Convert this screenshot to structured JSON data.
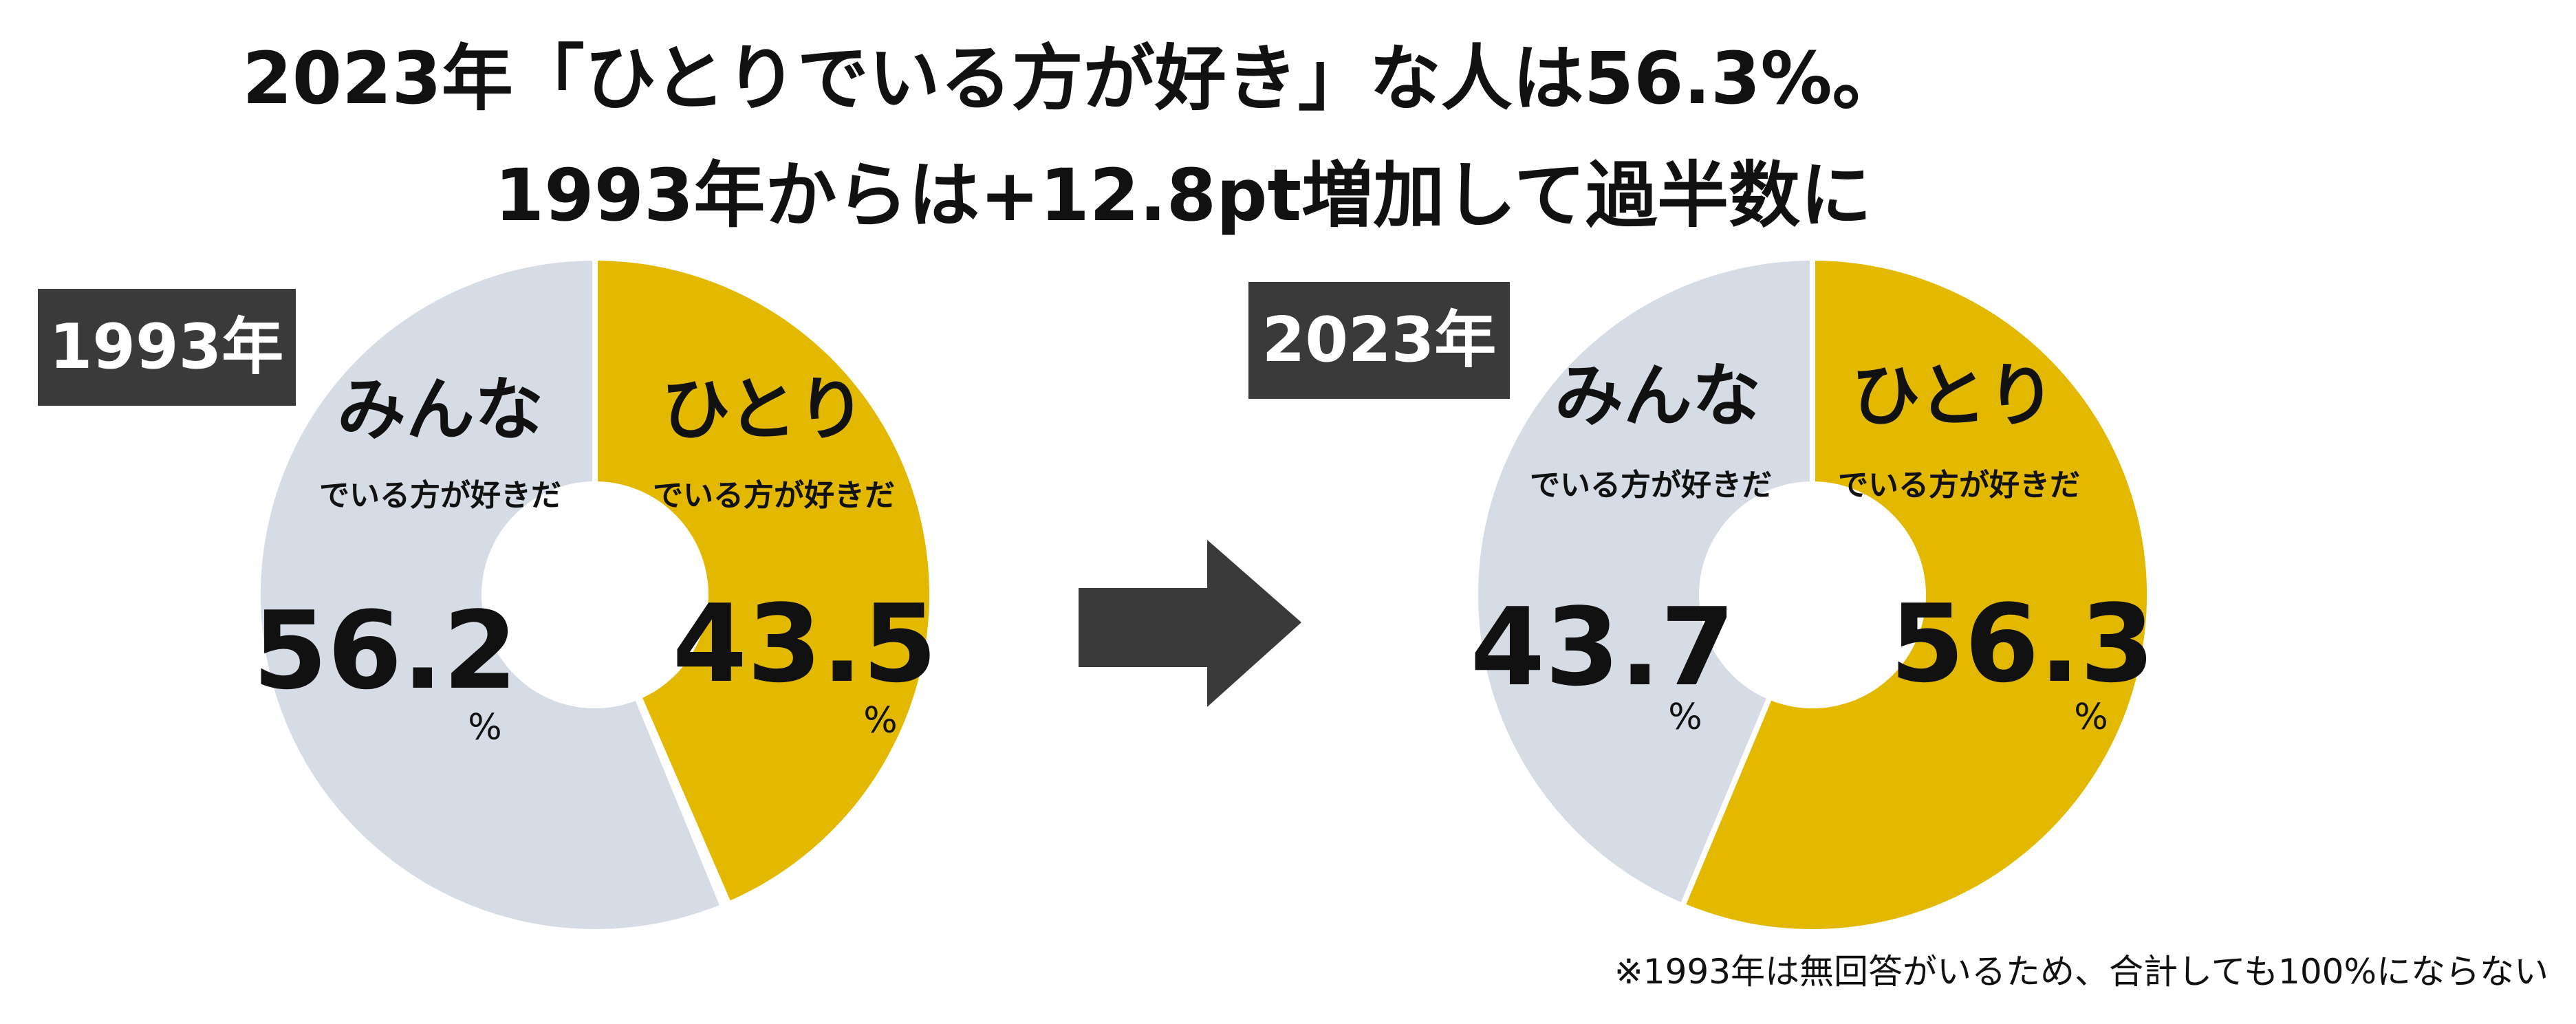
{
  "title": {
    "line1": "2023年「ひとりでいる方が好き」な人は56.3%。",
    "line2": "1993年からは+12.8pt増加して過半数に"
  },
  "note": "※1993年は無回答がいるため、合計しても100%にならない",
  "colors": {
    "hitori": "#E2B800",
    "minna": "#D6DCE6",
    "label_bg": "#3A3A3A",
    "arrow": "#3A3A3A"
  },
  "chart_data": [
    {
      "type": "pie",
      "year_label": "1993年",
      "unit": "%",
      "slices": [
        {
          "key": "hitori",
          "label": "ひとり",
          "sublabel": "でいる方が好きだ",
          "value": 43.5,
          "value_text": "43.5"
        },
        {
          "key": "minna",
          "label": "みんな",
          "sublabel": "でいる方が好きだ",
          "value": 56.2,
          "value_text": "56.2"
        }
      ]
    },
    {
      "type": "pie",
      "year_label": "2023年",
      "unit": "%",
      "slices": [
        {
          "key": "hitori",
          "label": "ひとり",
          "sublabel": "でいる方が好きだ",
          "value": 56.3,
          "value_text": "56.3"
        },
        {
          "key": "minna",
          "label": "みんな",
          "sublabel": "でいる方が好きだ",
          "value": 43.7,
          "value_text": "43.7"
        }
      ]
    }
  ]
}
